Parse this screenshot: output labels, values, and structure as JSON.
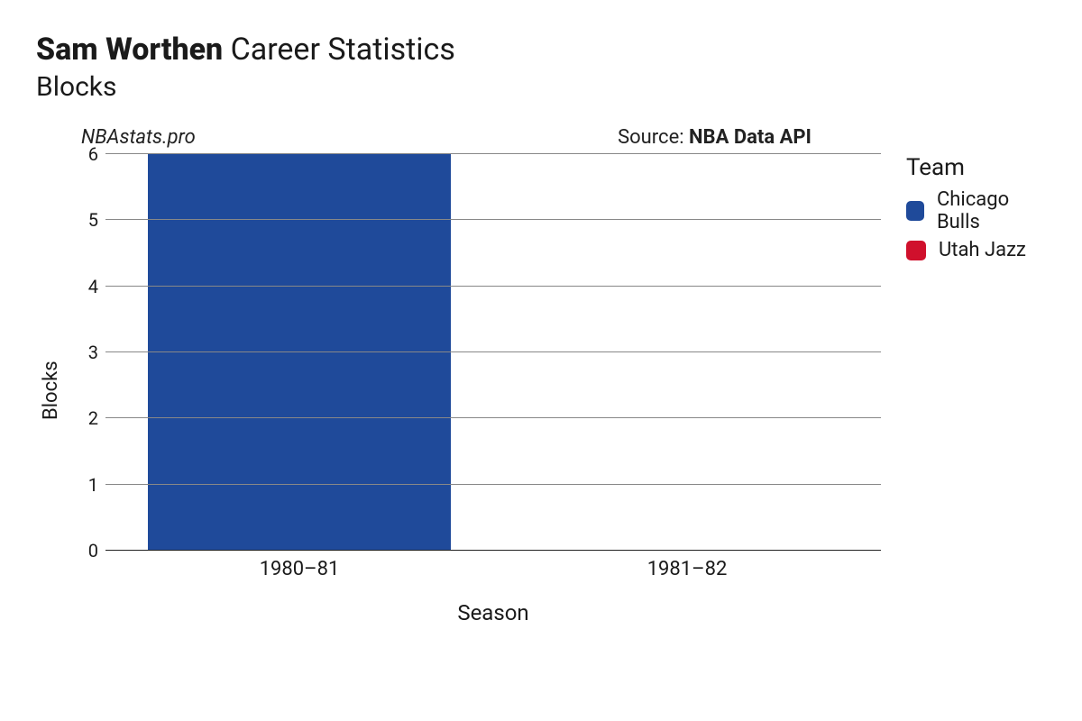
{
  "title": {
    "bold": "Sam Worthen",
    "rest": " Career Statistics"
  },
  "subtitle": "Blocks",
  "watermark": "NBAstats.pro",
  "source": {
    "prefix": "Source: ",
    "name": "NBA Data API"
  },
  "legend": {
    "title": "Team",
    "items": [
      {
        "label": "Chicago Bulls",
        "color": "#1f4a9a"
      },
      {
        "label": "Utah Jazz",
        "color": "#d0102c"
      }
    ]
  },
  "chart": {
    "type": "bar",
    "categories": [
      "1980–81",
      "1981–82"
    ],
    "values": [
      6,
      0
    ],
    "bar_colors": [
      "#1f4a9a",
      "#d0102c"
    ],
    "xlabel": "Season",
    "ylabel": "Blocks",
    "ylim": [
      0,
      6
    ],
    "ytick_step": 1,
    "ticks": [
      0,
      1,
      2,
      3,
      4,
      5,
      6
    ],
    "bar_width": 0.78,
    "background_color": "#ffffff",
    "grid_color": "#888888",
    "label_fontsize": 22,
    "tick_fontsize": 20,
    "axis_fontsize": 24
  }
}
